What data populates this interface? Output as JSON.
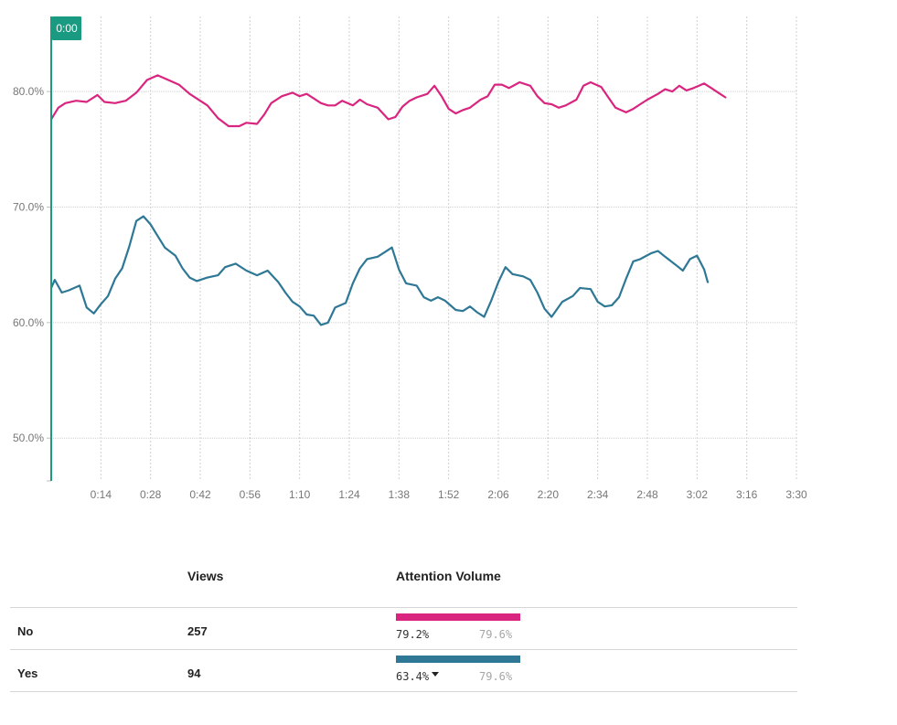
{
  "chart_data": {
    "type": "line",
    "x_unit": "seconds",
    "x_ticks": [
      "0:14",
      "0:28",
      "0:42",
      "0:56",
      "1:10",
      "1:24",
      "1:38",
      "1:52",
      "2:06",
      "2:20",
      "2:34",
      "2:48",
      "3:02",
      "3:16",
      "3:30"
    ],
    "y_ticks": [
      "50.0%",
      "60.0%",
      "70.0%",
      "80.0%"
    ],
    "ylim": [
      46.3,
      86.5
    ],
    "xlim": [
      0,
      210
    ],
    "grid": true,
    "series": [
      {
        "name": "No",
        "color": "#d9257f",
        "points": [
          [
            0,
            77.6
          ],
          [
            2,
            78.6
          ],
          [
            4,
            79.0
          ],
          [
            7,
            79.2
          ],
          [
            10,
            79.1
          ],
          [
            13,
            79.7
          ],
          [
            15,
            79.1
          ],
          [
            18,
            79.0
          ],
          [
            21,
            79.2
          ],
          [
            24,
            79.9
          ],
          [
            27,
            81.0
          ],
          [
            30,
            81.4
          ],
          [
            33,
            81.0
          ],
          [
            36,
            80.6
          ],
          [
            39,
            79.8
          ],
          [
            41,
            79.4
          ],
          [
            44,
            78.8
          ],
          [
            47,
            77.7
          ],
          [
            50,
            77.0
          ],
          [
            53,
            77.0
          ],
          [
            55,
            77.3
          ],
          [
            58,
            77.2
          ],
          [
            60,
            78.0
          ],
          [
            62,
            79.0
          ],
          [
            65,
            79.6
          ],
          [
            68,
            79.9
          ],
          [
            70,
            79.6
          ],
          [
            72,
            79.8
          ],
          [
            74,
            79.4
          ],
          [
            76,
            79.0
          ],
          [
            78,
            78.8
          ],
          [
            80,
            78.8
          ],
          [
            82,
            79.2
          ],
          [
            85,
            78.8
          ],
          [
            87,
            79.3
          ],
          [
            89,
            78.9
          ],
          [
            92,
            78.6
          ],
          [
            95,
            77.6
          ],
          [
            97,
            77.8
          ],
          [
            99,
            78.7
          ],
          [
            101,
            79.2
          ],
          [
            103,
            79.5
          ],
          [
            106,
            79.8
          ],
          [
            108,
            80.5
          ],
          [
            110,
            79.6
          ],
          [
            112,
            78.5
          ],
          [
            114,
            78.1
          ],
          [
            116,
            78.4
          ],
          [
            118,
            78.6
          ],
          [
            121,
            79.3
          ],
          [
            123,
            79.6
          ],
          [
            125,
            80.6
          ],
          [
            127,
            80.6
          ],
          [
            129,
            80.3
          ],
          [
            132,
            80.8
          ],
          [
            135,
            80.5
          ],
          [
            137,
            79.6
          ],
          [
            139,
            79.0
          ],
          [
            141,
            78.9
          ],
          [
            143,
            78.6
          ],
          [
            145,
            78.8
          ],
          [
            148,
            79.3
          ],
          [
            150,
            80.5
          ],
          [
            152,
            80.8
          ],
          [
            155,
            80.4
          ],
          [
            157,
            79.5
          ],
          [
            159,
            78.6
          ],
          [
            162,
            78.2
          ],
          [
            164,
            78.5
          ],
          [
            166,
            78.9
          ],
          [
            168,
            79.3
          ],
          [
            171,
            79.8
          ],
          [
            173,
            80.2
          ],
          [
            175,
            80.0
          ],
          [
            177,
            80.5
          ],
          [
            179,
            80.1
          ],
          [
            181,
            80.3
          ],
          [
            184,
            80.7
          ],
          [
            186,
            80.3
          ],
          [
            188,
            79.9
          ],
          [
            190,
            79.5
          ]
        ]
      },
      {
        "name": "Yes",
        "color": "#2e7896",
        "points": [
          [
            0,
            63.0
          ],
          [
            1,
            63.7
          ],
          [
            3,
            62.6
          ],
          [
            5,
            62.8
          ],
          [
            8,
            63.2
          ],
          [
            10,
            61.3
          ],
          [
            12,
            60.8
          ],
          [
            14,
            61.6
          ],
          [
            16,
            62.3
          ],
          [
            18,
            63.8
          ],
          [
            20,
            64.7
          ],
          [
            22,
            66.6
          ],
          [
            24,
            68.8
          ],
          [
            26,
            69.2
          ],
          [
            28,
            68.5
          ],
          [
            30,
            67.5
          ],
          [
            32,
            66.5
          ],
          [
            35,
            65.8
          ],
          [
            37,
            64.7
          ],
          [
            39,
            63.9
          ],
          [
            41,
            63.6
          ],
          [
            44,
            63.9
          ],
          [
            47,
            64.1
          ],
          [
            49,
            64.8
          ],
          [
            52,
            65.1
          ],
          [
            55,
            64.5
          ],
          [
            58,
            64.1
          ],
          [
            61,
            64.5
          ],
          [
            64,
            63.5
          ],
          [
            66,
            62.6
          ],
          [
            68,
            61.8
          ],
          [
            70,
            61.4
          ],
          [
            72,
            60.7
          ],
          [
            74,
            60.6
          ],
          [
            76,
            59.8
          ],
          [
            78,
            60.0
          ],
          [
            80,
            61.3
          ],
          [
            83,
            61.7
          ],
          [
            85,
            63.4
          ],
          [
            87,
            64.7
          ],
          [
            89,
            65.5
          ],
          [
            92,
            65.7
          ],
          [
            94,
            66.1
          ],
          [
            96,
            66.5
          ],
          [
            98,
            64.6
          ],
          [
            100,
            63.4
          ],
          [
            103,
            63.2
          ],
          [
            105,
            62.2
          ],
          [
            107,
            61.9
          ],
          [
            109,
            62.2
          ],
          [
            111,
            61.9
          ],
          [
            114,
            61.1
          ],
          [
            116,
            61.0
          ],
          [
            118,
            61.4
          ],
          [
            120,
            60.9
          ],
          [
            122,
            60.5
          ],
          [
            124,
            61.9
          ],
          [
            126,
            63.5
          ],
          [
            128,
            64.8
          ],
          [
            130,
            64.2
          ],
          [
            133,
            64.0
          ],
          [
            135,
            63.7
          ],
          [
            137,
            62.6
          ],
          [
            139,
            61.2
          ],
          [
            141,
            60.5
          ],
          [
            144,
            61.8
          ],
          [
            147,
            62.3
          ],
          [
            149,
            63.0
          ],
          [
            152,
            62.9
          ],
          [
            154,
            61.8
          ],
          [
            156,
            61.4
          ],
          [
            158,
            61.5
          ],
          [
            160,
            62.2
          ],
          [
            162,
            63.8
          ],
          [
            164,
            65.3
          ],
          [
            166,
            65.5
          ],
          [
            169,
            66.0
          ],
          [
            171,
            66.2
          ],
          [
            173,
            65.7
          ],
          [
            176,
            65.0
          ],
          [
            178,
            64.5
          ],
          [
            180,
            65.5
          ],
          [
            182,
            65.8
          ],
          [
            184,
            64.6
          ],
          [
            185,
            63.5
          ]
        ]
      }
    ]
  },
  "playhead": {
    "label": "0:00"
  },
  "table": {
    "columns": {
      "views": "Views",
      "attention": "Attention Volume"
    },
    "rows": [
      {
        "name": "No",
        "views": "257",
        "attention": "79.2%",
        "benchmark": "79.6%",
        "color": "#d9257f",
        "bar_fraction": 1.0,
        "trend": ""
      },
      {
        "name": "Yes",
        "views": "94",
        "attention": "63.4%",
        "benchmark": "79.6%",
        "color": "#2e7896",
        "bar_fraction": 1.0,
        "trend": "down"
      }
    ]
  }
}
